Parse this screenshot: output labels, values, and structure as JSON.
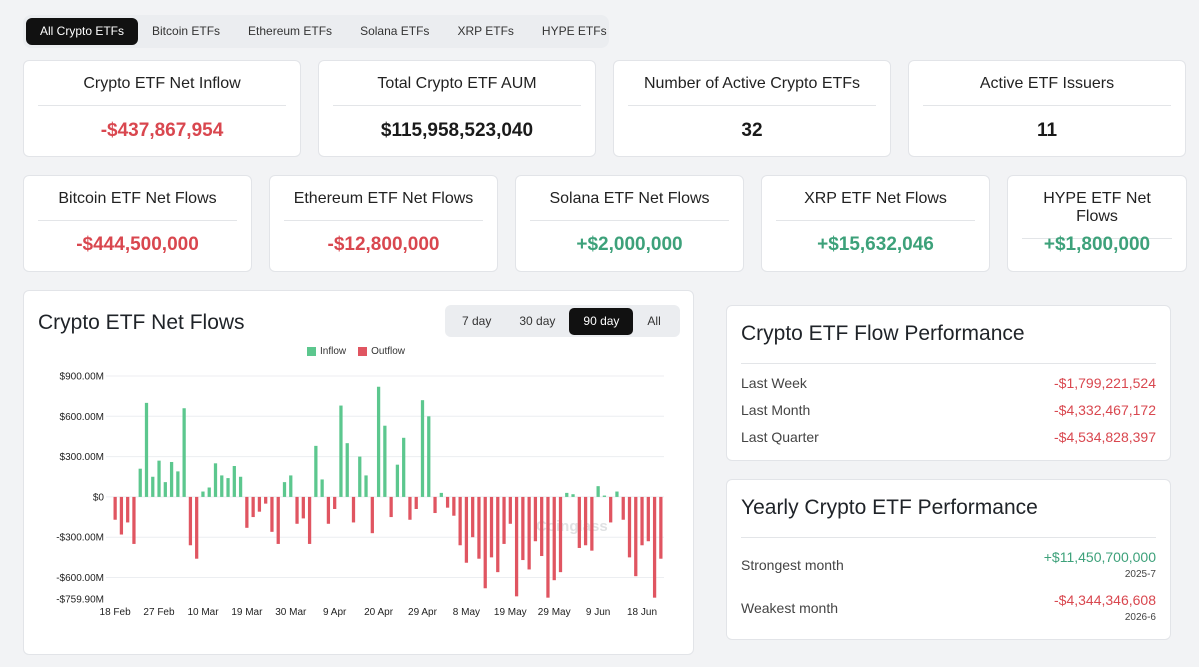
{
  "tabs": [
    {
      "label": "All Crypto ETFs",
      "active": true
    },
    {
      "label": "Bitcoin ETFs",
      "active": false
    },
    {
      "label": "Ethereum ETFs",
      "active": false
    },
    {
      "label": "Solana ETFs",
      "active": false
    },
    {
      "label": "XRP ETFs",
      "active": false
    },
    {
      "label": "HYPE ETFs",
      "active": false
    }
  ],
  "summary": [
    {
      "title": "Crypto ETF Net Inflow",
      "value": "-$437,867,954",
      "tone": "neg"
    },
    {
      "title": "Total Crypto ETF AUM",
      "value": "$115,958,523,040",
      "tone": "neutral"
    },
    {
      "title": "Number of Active Crypto ETFs",
      "value": "32",
      "tone": "neutral"
    },
    {
      "title": "Active ETF Issuers",
      "value": "11",
      "tone": "neutral"
    }
  ],
  "flows": [
    {
      "title": "Bitcoin ETF Net Flows",
      "value": "-$444,500,000",
      "tone": "neg"
    },
    {
      "title": "Ethereum ETF Net Flows",
      "value": "-$12,800,000",
      "tone": "neg"
    },
    {
      "title": "Solana ETF Net Flows",
      "value": "+$2,000,000",
      "tone": "pos"
    },
    {
      "title": "XRP ETF Net Flows",
      "value": "+$15,632,046",
      "tone": "pos"
    },
    {
      "title": "HYPE ETF Net Flows",
      "value": "+$1,800,000",
      "tone": "pos"
    }
  ],
  "chart_panel": {
    "title": "Crypto ETF Net Flows",
    "ranges": [
      {
        "label": "7 day",
        "active": false
      },
      {
        "label": "30 day",
        "active": false
      },
      {
        "label": "90 day",
        "active": true
      },
      {
        "label": "All",
        "active": false
      }
    ],
    "watermark": "Coinglass"
  },
  "colors": {
    "inflow": "#5cc78e",
    "outflow": "#e05561",
    "negative_text": "#d9474f",
    "positive_text": "#3da17a"
  },
  "chart_data": {
    "type": "bar",
    "series": [
      {
        "name": "Inflow",
        "color": "#5cc78e"
      },
      {
        "name": "Outflow",
        "color": "#e05561"
      }
    ],
    "ytick_labels": [
      "$900.00M",
      "$600.00M",
      "$300.00M",
      "$0",
      "-$300.00M",
      "-$600.00M",
      "-$759.90M"
    ],
    "ytick_values": [
      900,
      600,
      300,
      0,
      -300,
      -600,
      -759.9
    ],
    "ylim": [
      -759.9,
      900
    ],
    "y_unit": "$M",
    "xtick_labels": [
      "18 Feb",
      "27 Feb",
      "10 Mar",
      "19 Mar",
      "30 Mar",
      "9 Apr",
      "20 Apr",
      "29 Apr",
      "8 May",
      "19 May",
      "29 May",
      "9 Jun",
      "18 Jun"
    ],
    "xtick_index": [
      0,
      7,
      14,
      21,
      28,
      35,
      42,
      49,
      56,
      63,
      70,
      77,
      84
    ],
    "values": [
      -170,
      -280,
      -190,
      -350,
      210,
      700,
      150,
      270,
      110,
      260,
      190,
      660,
      -360,
      -460,
      40,
      70,
      250,
      160,
      140,
      230,
      150,
      -230,
      -150,
      -110,
      -50,
      -260,
      -350,
      110,
      160,
      -200,
      -160,
      -350,
      380,
      130,
      -200,
      -90,
      680,
      400,
      -190,
      300,
      160,
      -270,
      820,
      530,
      -150,
      240,
      440,
      -170,
      -90,
      720,
      600,
      -120,
      30,
      -80,
      -140,
      -360,
      -490,
      -300,
      -460,
      -680,
      -450,
      -560,
      -350,
      -200,
      -740,
      -470,
      -540,
      -330,
      -440,
      -750,
      -620,
      -560,
      30,
      20,
      -380,
      -360,
      -400,
      80,
      10,
      -190,
      40,
      -170,
      -450,
      -590,
      -360,
      -330,
      -750,
      -460
    ],
    "legend_position": "top-center",
    "grid": true
  },
  "performance": {
    "title": "Crypto ETF Flow Performance",
    "rows": [
      {
        "label": "Last Week",
        "value": "-$1,799,221,524"
      },
      {
        "label": "Last Month",
        "value": "-$4,332,467,172"
      },
      {
        "label": "Last Quarter",
        "value": "-$4,534,828,397"
      }
    ]
  },
  "yearly": {
    "title": "Yearly Crypto ETF Performance",
    "strongest": {
      "label": "Strongest month",
      "value": "+$11,450,700,000",
      "date": "2025-7"
    },
    "weakest": {
      "label": "Weakest month",
      "value": "-$4,344,346,608",
      "date": "2026-6"
    }
  }
}
